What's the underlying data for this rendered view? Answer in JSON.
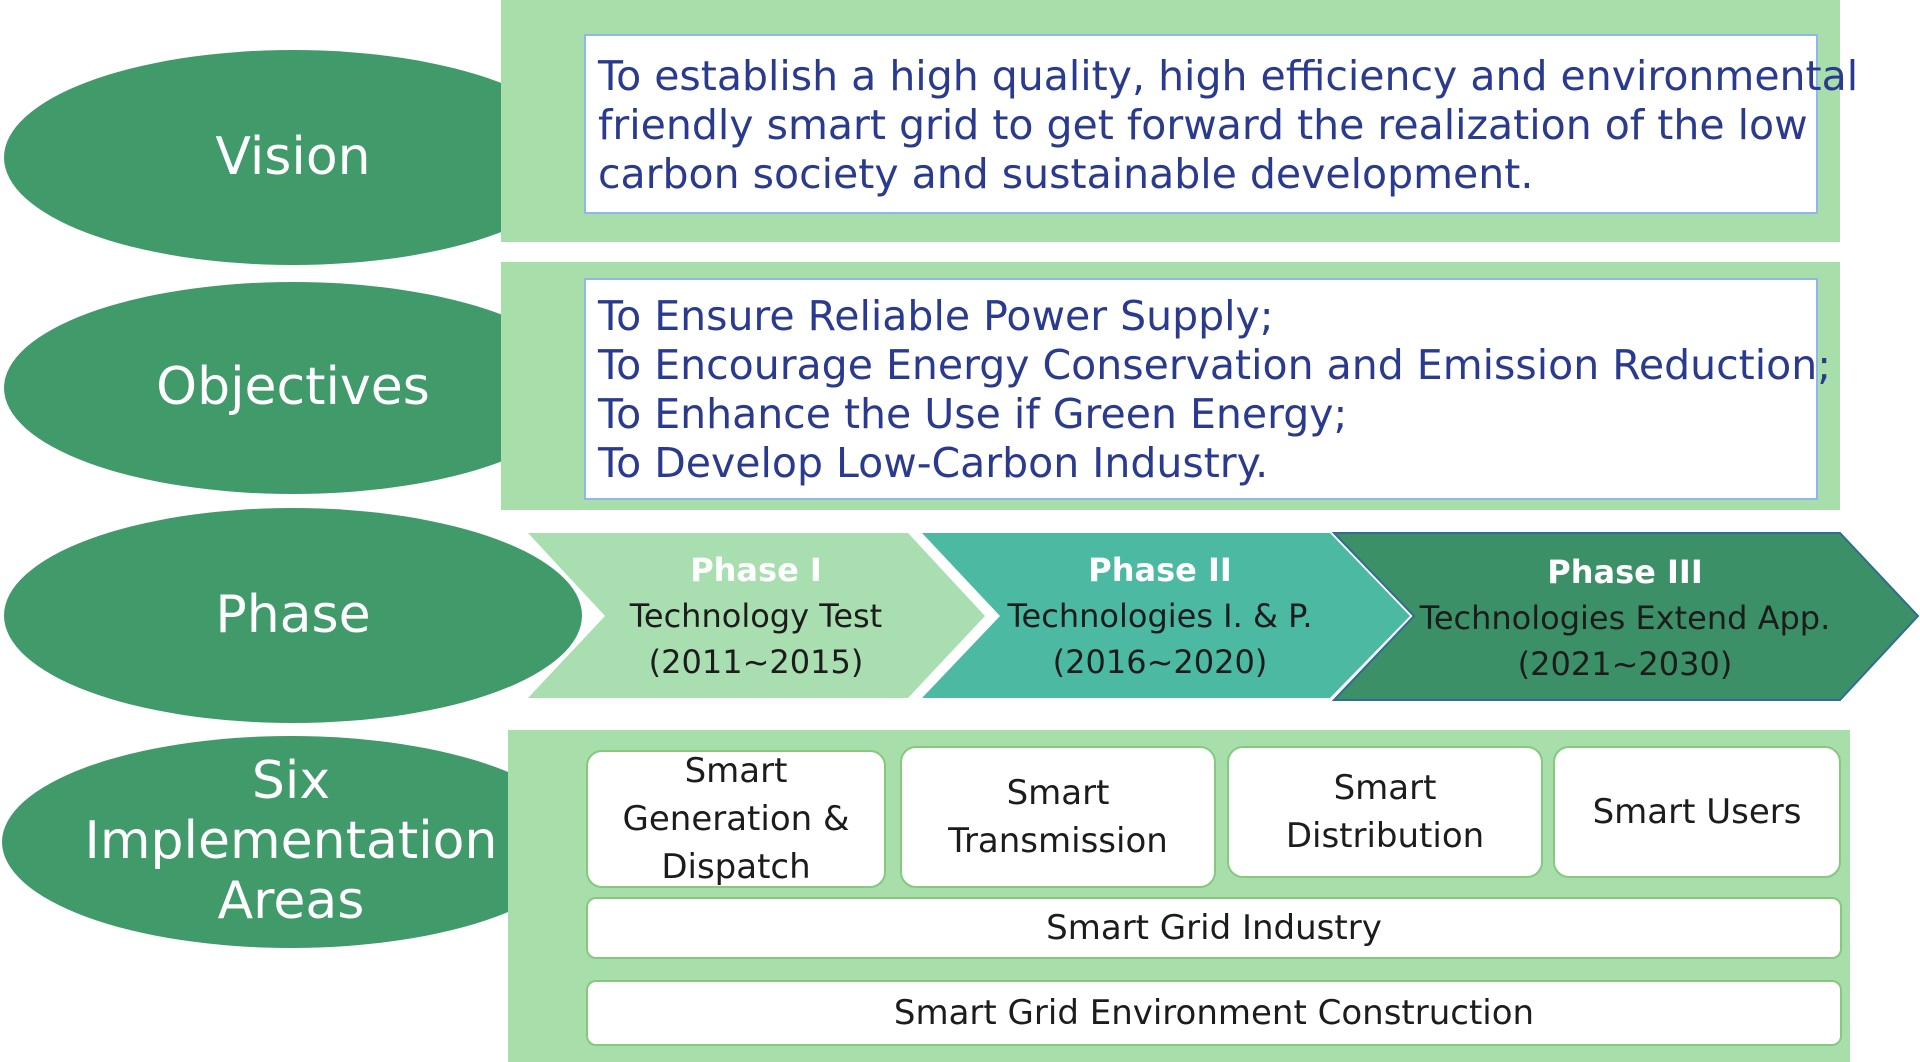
{
  "colors": {
    "ellipse": "#409a6a",
    "panel": "#a7deaa",
    "phase_1": "#a9deb0",
    "phase_2": "#4cb9a3",
    "phase_3": "#3c9068",
    "text_blue": "#2a3a8f",
    "box_border": "#86c97e"
  },
  "labels": {
    "vision": "Vision",
    "objectives": "Objectives",
    "phase": "Phase",
    "six_areas": [
      "Six",
      "Implementation",
      "Areas"
    ]
  },
  "vision": {
    "lines": [
      "To establish a high quality, high efficiency and environmental",
      "friendly smart grid to get forward the realization of the low",
      "carbon society and sustainable development."
    ]
  },
  "objectives": {
    "lines": [
      "To Ensure Reliable Power Supply;",
      "To Encourage Energy Conservation and Emission Reduction;",
      "To Enhance the Use if Green Energy;",
      "To Develop Low-Carbon Industry."
    ]
  },
  "phases": [
    {
      "name": "Phase I",
      "title": "Technology Test",
      "period": "(2011~2015)"
    },
    {
      "name": "Phase II",
      "title": "Technologies I. & P.",
      "period": "(2016~2020)"
    },
    {
      "name": "Phase III",
      "title": "Technologies Extend App.",
      "period": "(2021~2030)"
    }
  ],
  "areas": {
    "gen_dispatch": [
      "Smart",
      "Generation &",
      "Dispatch"
    ],
    "transmission": [
      "Smart",
      "Transmission"
    ],
    "distribution": [
      "Smart",
      "Distribution"
    ],
    "users": "Smart Users",
    "industry": "Smart Grid Industry",
    "environment": "Smart Grid Environment Construction"
  }
}
